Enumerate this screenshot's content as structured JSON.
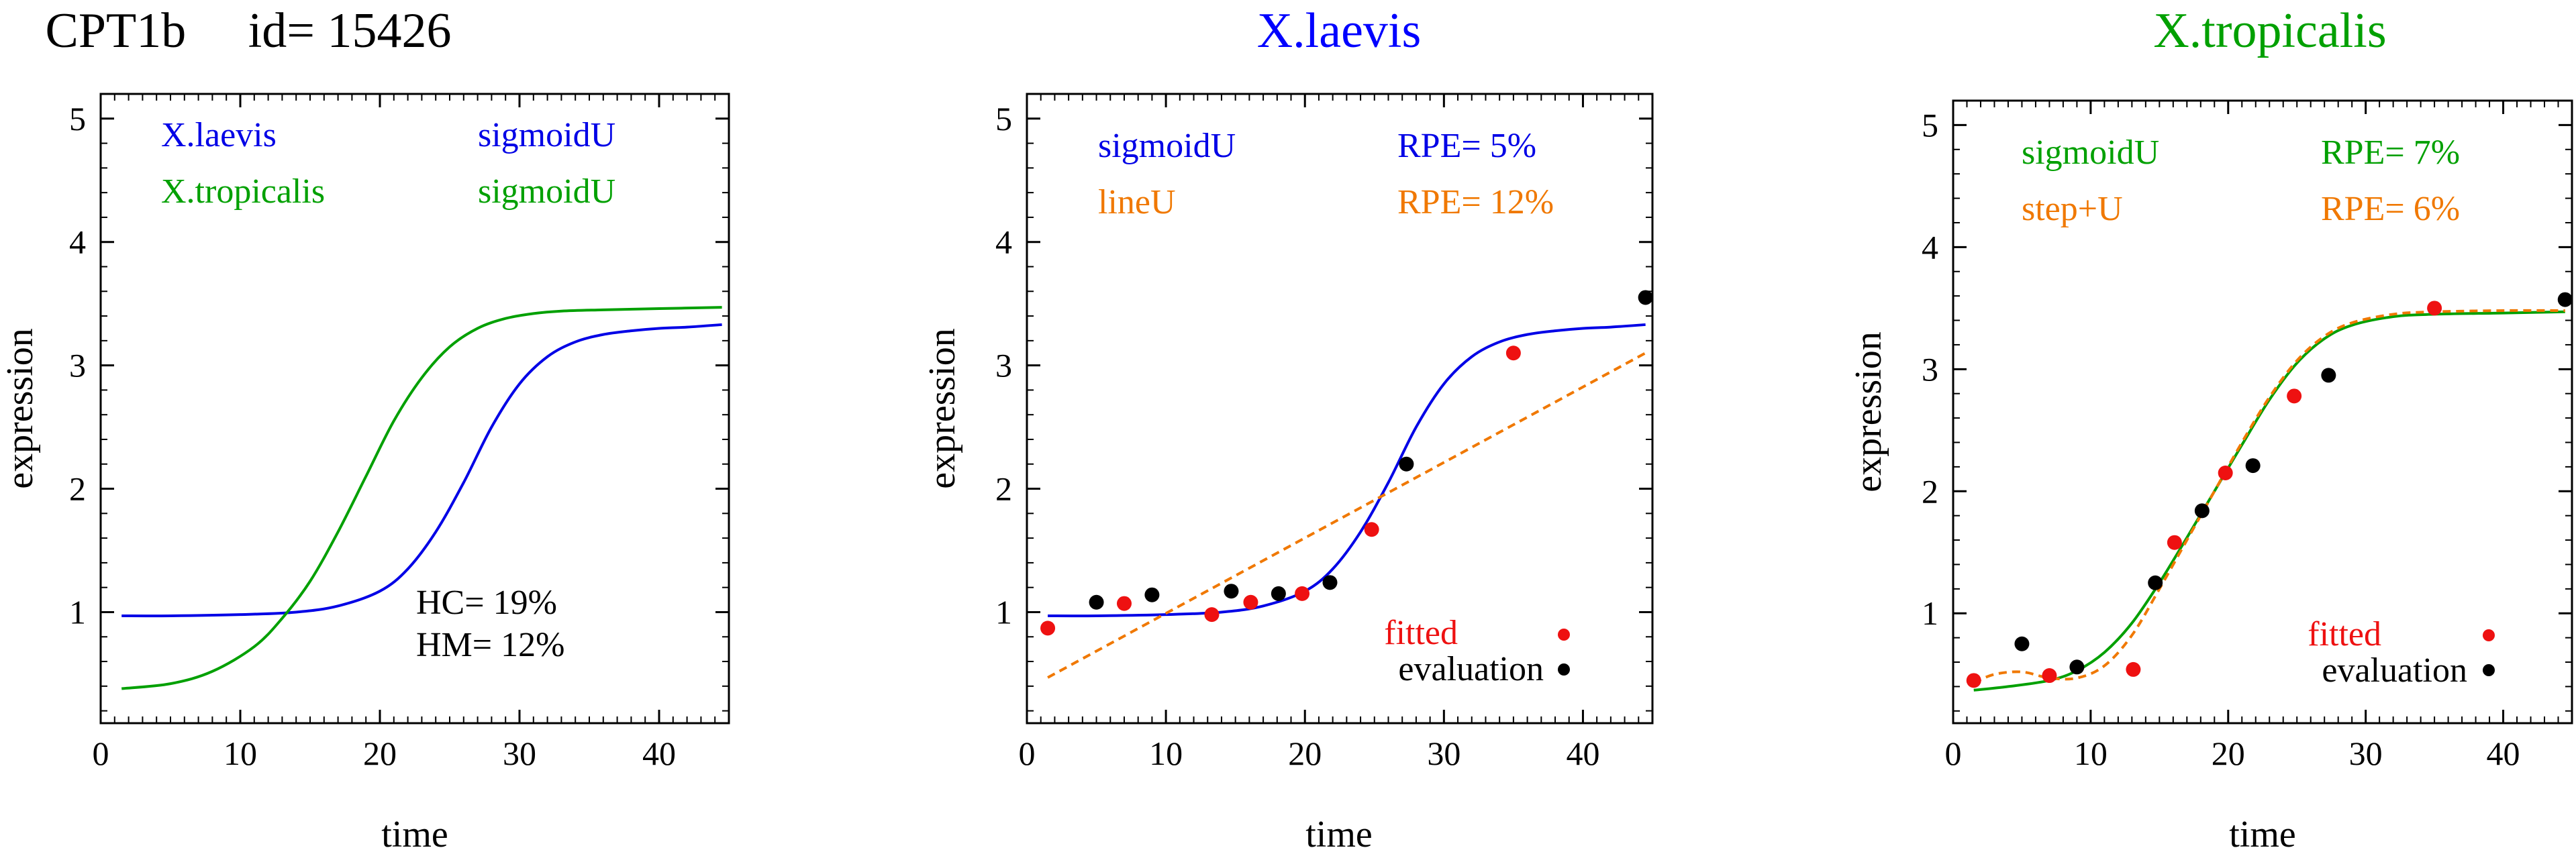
{
  "figure": {
    "panel_titles": [
      "CPT1b     id= 15426",
      "X.laevis",
      "X.tropicalis"
    ],
    "title_colors": [
      "#000000",
      "#0000ff",
      "#00a000"
    ]
  },
  "colors": {
    "blue": "#0000e6",
    "green": "#00a000",
    "orange": "#f07800",
    "red": "#ee1111",
    "black": "#000000"
  },
  "chart_data": [
    {
      "type": "line",
      "title": "CPT1b     id= 15426",
      "xlabel": "time",
      "ylabel": "expression",
      "xlim": [
        0,
        45
      ],
      "ylim": [
        0.1,
        5.2
      ],
      "xticks": [
        0,
        10,
        20,
        30,
        40
      ],
      "yticks": [
        1,
        2,
        3,
        4,
        5
      ],
      "series": [
        {
          "name": "X.laevis",
          "model": "sigmoidU",
          "color": "#0000e6",
          "dashed": false,
          "x": [
            1.5,
            5,
            10,
            14,
            17,
            20,
            22,
            24,
            26,
            28,
            30,
            32,
            34,
            36,
            38,
            40,
            42,
            44.5
          ],
          "y": [
            0.97,
            0.97,
            0.98,
            1.0,
            1.05,
            1.17,
            1.35,
            1.65,
            2.05,
            2.5,
            2.85,
            3.07,
            3.19,
            3.25,
            3.28,
            3.3,
            3.31,
            3.33
          ]
        },
        {
          "name": "X.tropicalis",
          "model": "sigmoidU",
          "color": "#00a000",
          "dashed": false,
          "x": [
            1.5,
            5,
            8,
            11,
            13,
            15,
            17,
            19,
            21,
            23,
            25,
            27,
            29,
            31,
            33,
            36,
            40,
            44.5
          ],
          "y": [
            0.38,
            0.42,
            0.52,
            0.72,
            0.95,
            1.25,
            1.65,
            2.1,
            2.55,
            2.9,
            3.15,
            3.3,
            3.38,
            3.42,
            3.44,
            3.45,
            3.46,
            3.47
          ]
        }
      ],
      "legend_rows": [
        {
          "name": "X.laevis",
          "model": "sigmoidU",
          "color": "#0000e6"
        },
        {
          "name": "X.tropicalis",
          "model": "sigmoidU",
          "color": "#00a000"
        }
      ],
      "annotations": [
        "HC= 19%",
        "HM= 12%"
      ]
    },
    {
      "type": "scatter",
      "title": "X.laevis",
      "xlabel": "time",
      "ylabel": "expression",
      "xlim": [
        0,
        45
      ],
      "ylim": [
        0.1,
        5.2
      ],
      "xticks": [
        0,
        10,
        20,
        30,
        40
      ],
      "yticks": [
        1,
        2,
        3,
        4,
        5
      ],
      "series": [
        {
          "name": "sigmoidU",
          "rpe": "RPE= 5%",
          "color": "#0000e6",
          "dashed": false,
          "x": [
            1.5,
            5,
            10,
            14,
            17,
            20,
            22,
            24,
            26,
            28,
            30,
            32,
            34,
            36,
            38,
            40,
            42,
            44.5
          ],
          "y": [
            0.97,
            0.97,
            0.98,
            1.0,
            1.05,
            1.17,
            1.35,
            1.65,
            2.05,
            2.5,
            2.85,
            3.07,
            3.19,
            3.25,
            3.28,
            3.3,
            3.31,
            3.33
          ]
        },
        {
          "name": "lineU",
          "rpe": "RPE= 12%",
          "color": "#f07800",
          "dashed": true,
          "x": [
            1.5,
            44.5
          ],
          "y": [
            0.47,
            3.1
          ]
        }
      ],
      "points": {
        "fitted": {
          "label": "fitted",
          "color": "#ee1111",
          "x": [
            1.5,
            7,
            13.3,
            16.1,
            19.8,
            24.8,
            35
          ],
          "y": [
            0.87,
            1.07,
            0.98,
            1.08,
            1.15,
            1.67,
            3.1
          ]
        },
        "evaluation": {
          "label": "evaluation",
          "color": "#000000",
          "x": [
            5,
            9,
            14.7,
            18.1,
            21.8,
            27.3,
            44.5
          ],
          "y": [
            1.08,
            1.14,
            1.17,
            1.15,
            1.24,
            2.2,
            3.55
          ]
        }
      }
    },
    {
      "type": "scatter",
      "title": "X.tropicalis",
      "xlabel": "time",
      "ylabel": "expression",
      "xlim": [
        0,
        45
      ],
      "ylim": [
        0.1,
        5.2
      ],
      "xticks": [
        0,
        10,
        20,
        30,
        40
      ],
      "yticks": [
        1,
        2,
        3,
        4,
        5
      ],
      "series": [
        {
          "name": "sigmoidU",
          "rpe": "RPE= 7%",
          "color": "#00a000",
          "dashed": false,
          "x": [
            1.5,
            4,
            7,
            9,
            11,
            13,
            15,
            17,
            19,
            21,
            23,
            25,
            27,
            29,
            32,
            35,
            40,
            44.5
          ],
          "y": [
            0.37,
            0.4,
            0.45,
            0.53,
            0.68,
            0.92,
            1.25,
            1.62,
            2.0,
            2.38,
            2.75,
            3.05,
            3.25,
            3.36,
            3.43,
            3.45,
            3.46,
            3.47
          ]
        },
        {
          "name": "step+U",
          "rpe": "RPE= 6%",
          "color": "#f07800",
          "dashed": true,
          "x": [
            1.5,
            3,
            5,
            7,
            9,
            11,
            13,
            15,
            17,
            19,
            21,
            23,
            25,
            27,
            29,
            32,
            35,
            40,
            44.5
          ],
          "y": [
            0.43,
            0.5,
            0.52,
            0.47,
            0.47,
            0.57,
            0.82,
            1.2,
            1.6,
            2.0,
            2.4,
            2.77,
            3.07,
            3.27,
            3.38,
            3.45,
            3.47,
            3.48,
            3.48
          ]
        }
      ],
      "points": {
        "fitted": {
          "label": "fitted",
          "color": "#ee1111",
          "x": [
            1.5,
            7,
            13.1,
            16.1,
            19.8,
            24.8,
            35
          ],
          "y": [
            0.45,
            0.49,
            0.54,
            1.58,
            2.15,
            2.78,
            3.5
          ]
        },
        "evaluation": {
          "label": "evaluation",
          "color": "#000000",
          "x": [
            5,
            9,
            14.7,
            18.1,
            21.8,
            27.3,
            44.5
          ],
          "y": [
            0.75,
            0.56,
            1.25,
            1.84,
            2.21,
            2.95,
            3.57
          ]
        }
      }
    }
  ]
}
